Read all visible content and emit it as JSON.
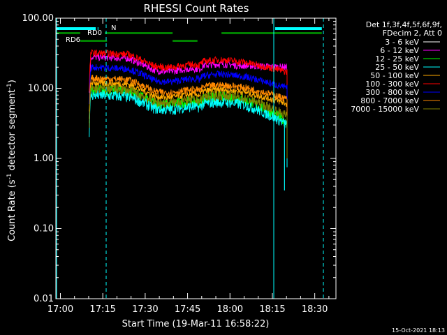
{
  "chart_data": {
    "type": "line",
    "title": "RHESSI Count Rates",
    "xlabel": "Start Time (19-Mar-11 16:58:22)",
    "ylabel_main": "Count Rate (s",
    "ylabel_sup1": "-1",
    "ylabel_mid": " detector segment",
    "ylabel_sup2": "-1",
    "ylabel_end": ")",
    "y_scale": "log",
    "ylim": [
      0.01,
      100
    ],
    "x_tick_labels": [
      "17:00",
      "17:15",
      "17:30",
      "17:45",
      "18:00",
      "18:15",
      "18:30"
    ],
    "x_tick_minutes": [
      0,
      15,
      30,
      45,
      60,
      75,
      90
    ],
    "xlim_minutes": [
      -1.6,
      97.5
    ],
    "y_ticks": [
      0.01,
      0.1,
      1,
      10,
      100
    ],
    "y_tick_labels": [
      "0.01",
      "0.10",
      "1.00",
      "10.00",
      "100.00"
    ],
    "legend_header": [
      "Det 1f,3f,4f,5f,6f,9f,",
      "FDecim 2, Att 0"
    ],
    "series": [
      {
        "name": "3 - 6 keV",
        "color": "#000000",
        "plateau": 10,
        "end": 3.5
      },
      {
        "name": "6 - 12 keV",
        "color": "#ff00ff",
        "plateau": 28,
        "end": 20
      },
      {
        "name": "12 - 25 keV",
        "color": "#00ff00",
        "plateau": 9.5,
        "end": 3.2
      },
      {
        "name": "25 - 50 keV",
        "color": "#00ffff",
        "plateau": 8,
        "end": 3
      },
      {
        "name": "50 - 100 keV",
        "color": "#ffaa00",
        "plateau": 12,
        "end": 6
      },
      {
        "name": "100 - 300 keV",
        "color": "#ff0000",
        "plateau": 32,
        "end": 17
      },
      {
        "name": "300 - 800 keV",
        "color": "#0000ff",
        "plateau": 20,
        "end": 10
      },
      {
        "name": "800 - 7000 keV",
        "color": "#ff8800",
        "plateau": 14,
        "end": 7
      },
      {
        "name": "7000 - 15000 keV",
        "color": "#808000",
        "plateau": 10,
        "end": 4
      }
    ],
    "annotations": {
      "n_label": "N",
      "rd0_label": "RD0",
      "rd6_label": "RD6"
    },
    "footer_date": "15-Oct-2021 18:13"
  }
}
